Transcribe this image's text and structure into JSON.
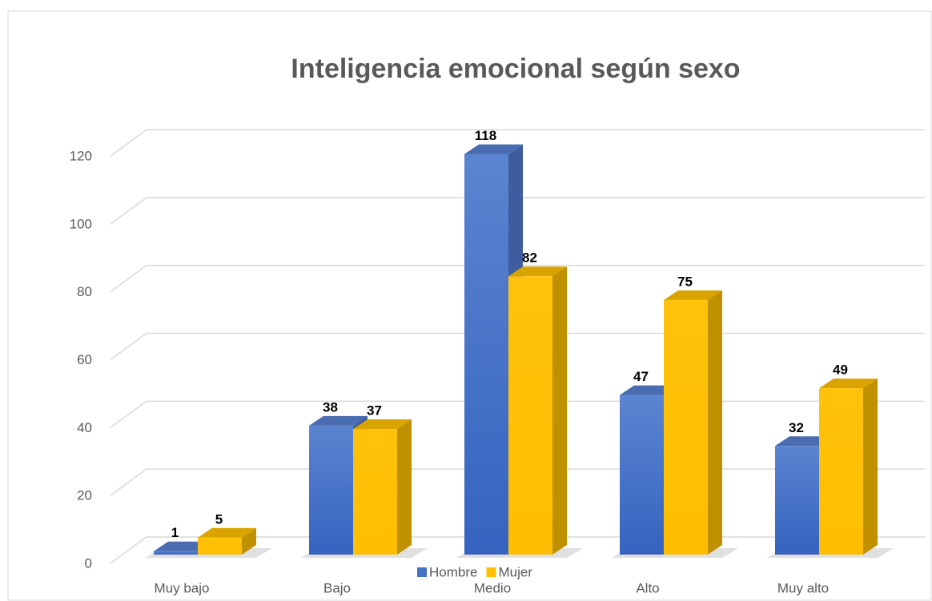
{
  "chart_data": {
    "type": "bar3d",
    "title": "Inteligencia emocional según sexo",
    "categories": [
      "Muy bajo",
      "Bajo",
      "Medio",
      "Alto",
      "Muy alto"
    ],
    "series": [
      {
        "name": "Hombre",
        "color": "#4472c4",
        "values": [
          1,
          38,
          118,
          47,
          32
        ]
      },
      {
        "name": "Mujer",
        "color": "#ffc000",
        "values": [
          5,
          37,
          82,
          75,
          49
        ]
      }
    ],
    "ylim": [
      0,
      120
    ],
    "yticks": [
      0,
      20,
      40,
      60,
      80,
      100,
      120
    ],
    "grid": true,
    "legend": "bottom"
  }
}
